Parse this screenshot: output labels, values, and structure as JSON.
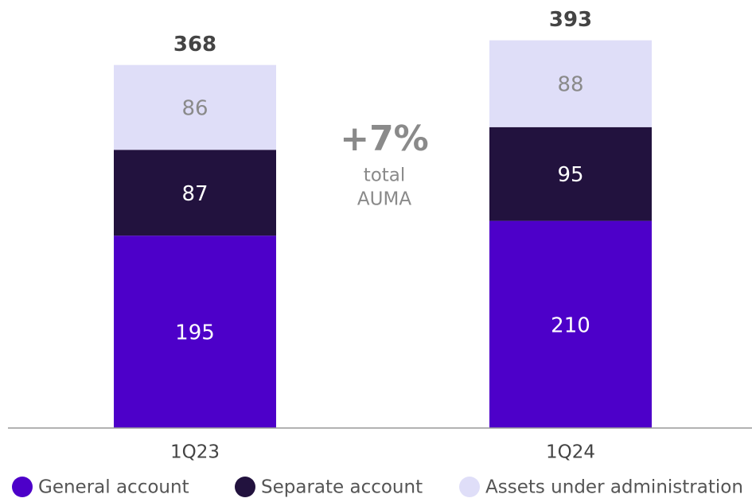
{
  "chart_data": {
    "type": "stacked_bar",
    "categories": [
      "1Q23",
      "1Q24"
    ],
    "series": [
      {
        "name": "General account",
        "color": "#4d00c9",
        "values": [
          195,
          210
        ]
      },
      {
        "name": "Separate account",
        "color": "#22123e",
        "values": [
          87,
          95
        ]
      },
      {
        "name": "Assets under administration",
        "color": "#dfdef8",
        "values": [
          86,
          88
        ]
      }
    ],
    "totals": [
      368,
      393
    ],
    "ylim": [
      0,
      400
    ],
    "annotation": {
      "headline": "+7%",
      "lines": [
        "total",
        "AUMA"
      ]
    },
    "legend": "bottom"
  }
}
